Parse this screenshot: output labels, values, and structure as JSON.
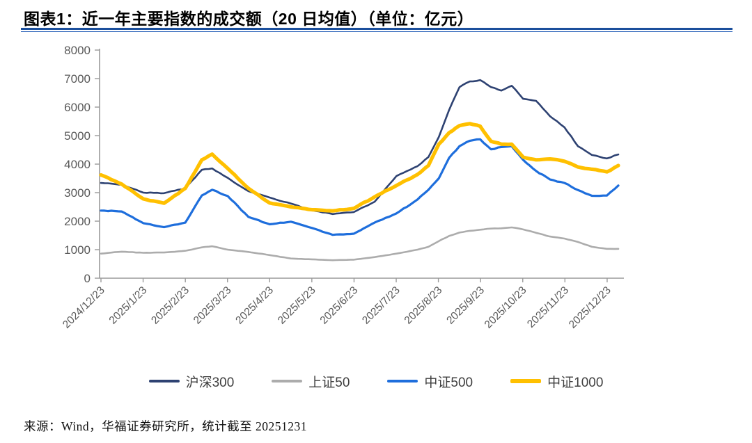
{
  "header": {
    "title": "图表1：近一年主要指数的成交额（20 日均值）（单位：亿元）"
  },
  "chart_data": {
    "type": "line",
    "title": "近一年主要指数的成交额（20 日均值）",
    "unit": "亿元",
    "ylim": [
      0,
      8000
    ],
    "ytick_step": 1000,
    "grid": false,
    "legend_position": "bottom",
    "x_tick_labels": [
      "2024/12/23",
      "2025/1/23",
      "2025/2/23",
      "2025/3/23",
      "2025/4/23",
      "2025/5/23",
      "2025/6/23",
      "2025/7/23",
      "2025/8/23",
      "2025/9/23",
      "2025/10/23",
      "2025/11/23",
      "2025/12/23"
    ],
    "x_tick_pos": [
      0,
      0.0815,
      0.1631,
      0.2446,
      0.3261,
      0.4076,
      0.4892,
      0.5707,
      0.6522,
      0.7338,
      0.8153,
      0.8968,
      0.9784
    ],
    "t": [
      0,
      0.04,
      0.082,
      0.122,
      0.163,
      0.195,
      0.215,
      0.245,
      0.285,
      0.326,
      0.367,
      0.408,
      0.448,
      0.489,
      0.529,
      0.571,
      0.612,
      0.633,
      0.653,
      0.673,
      0.693,
      0.713,
      0.733,
      0.754,
      0.774,
      0.794,
      0.816,
      0.841,
      0.868,
      0.896,
      0.922,
      0.949,
      0.978,
      1.0
    ],
    "series": [
      {
        "name": "沪深300",
        "color": "#2E4272",
        "stroke_width": 2.6,
        "values": [
          3340,
          3280,
          3000,
          2980,
          3150,
          3800,
          3850,
          3520,
          3050,
          2830,
          2620,
          2380,
          2250,
          2320,
          2680,
          3580,
          3930,
          4250,
          4950,
          5900,
          6700,
          6900,
          6950,
          6700,
          6580,
          6750,
          6290,
          6220,
          5680,
          5290,
          4630,
          4320,
          4200,
          4340
        ]
      },
      {
        "name": "上证50",
        "color": "#ACACAC",
        "stroke_width": 2.6,
        "values": [
          860,
          930,
          890,
          900,
          960,
          1080,
          1120,
          1000,
          920,
          810,
          690,
          660,
          630,
          650,
          740,
          860,
          1000,
          1100,
          1300,
          1480,
          1600,
          1660,
          1700,
          1740,
          1750,
          1780,
          1710,
          1590,
          1460,
          1390,
          1270,
          1100,
          1030,
          1030
        ]
      },
      {
        "name": "中证500",
        "color": "#1E6EDC",
        "stroke_width": 3.2,
        "values": [
          2370,
          2340,
          1930,
          1790,
          1950,
          2900,
          3100,
          2880,
          2150,
          1890,
          1980,
          1760,
          1520,
          1560,
          1950,
          2270,
          2760,
          3100,
          3500,
          4220,
          4630,
          4820,
          4870,
          4520,
          4600,
          4630,
          4150,
          3760,
          3460,
          3340,
          3090,
          2890,
          2900,
          3250
        ]
      },
      {
        "name": "中证1000",
        "color": "#FFC000",
        "stroke_width": 5.2,
        "values": [
          3620,
          3300,
          2780,
          2630,
          3150,
          4150,
          4350,
          3850,
          3150,
          2640,
          2500,
          2400,
          2360,
          2450,
          2850,
          3250,
          3640,
          3950,
          4700,
          5100,
          5350,
          5420,
          5330,
          4800,
          4700,
          4700,
          4250,
          4150,
          4180,
          4100,
          3900,
          3820,
          3730,
          3950
        ]
      }
    ]
  },
  "footer": {
    "source_text": "来源：Wind，华福证券研究所，统计截至 20251231"
  }
}
